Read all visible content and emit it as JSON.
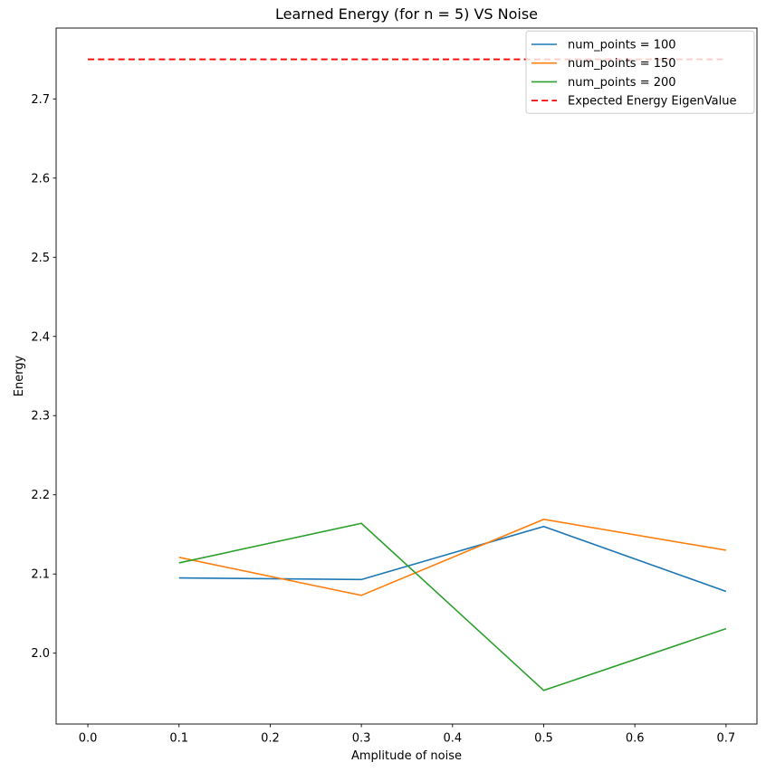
{
  "chart_data": {
    "type": "line",
    "title": "Learned Energy (for n = 5) VS Noise",
    "xlabel": "Amplitude of noise",
    "ylabel": "Energy",
    "x": [
      0.1,
      0.3,
      0.5,
      0.7
    ],
    "series": [
      {
        "name": "num_points = 100",
        "color": "#1f77b4",
        "style": "solid",
        "values": [
          2.095,
          2.093,
          2.16,
          2.078
        ]
      },
      {
        "name": "num_points = 150",
        "color": "#ff7f0e",
        "style": "solid",
        "values": [
          2.121,
          2.073,
          2.169,
          2.13
        ]
      },
      {
        "name": "num_points = 200",
        "color": "#2ca02c",
        "style": "solid",
        "values": [
          2.114,
          2.164,
          1.953,
          2.031
        ]
      },
      {
        "name": "Expected Energy EigenValue",
        "color": "#ff0000",
        "style": "dashed",
        "x": [
          0.0,
          0.7
        ],
        "values": [
          2.75,
          2.75
        ]
      }
    ],
    "xticks": [
      0.0,
      0.1,
      0.2,
      0.3,
      0.4,
      0.5,
      0.6,
      0.7
    ],
    "xtick_labels": [
      "0.0",
      "0.1",
      "0.2",
      "0.3",
      "0.4",
      "0.5",
      "0.6",
      "0.7"
    ],
    "yticks": [
      2.0,
      2.1,
      2.2,
      2.3,
      2.4,
      2.5,
      2.6,
      2.7
    ],
    "ytick_labels": [
      "2.0",
      "2.1",
      "2.2",
      "2.3",
      "2.4",
      "2.5",
      "2.6",
      "2.7"
    ],
    "xlim": [
      -0.0348,
      0.7339
    ],
    "ylim": [
      1.9105,
      2.7895
    ],
    "grid": false,
    "legend_position": "upper right"
  }
}
